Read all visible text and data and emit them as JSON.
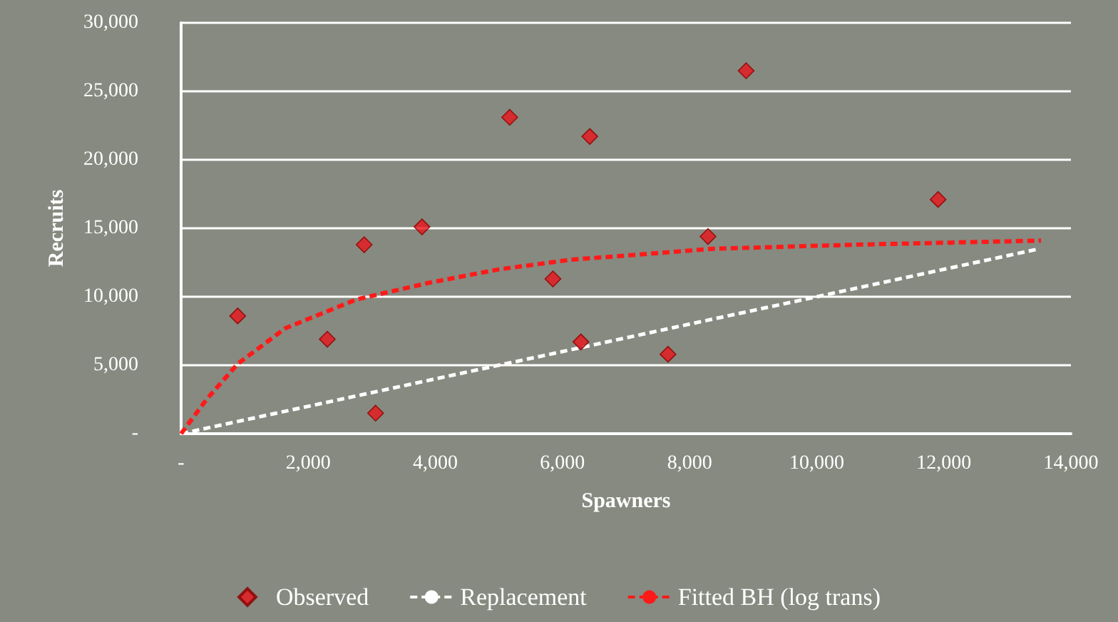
{
  "chart_data": {
    "type": "scatter",
    "xlabel": "Spawners",
    "ylabel": "Recruits",
    "xlim": [
      0,
      14000
    ],
    "xticks": [
      {
        "value": 0,
        "label": "-"
      },
      {
        "value": 2000,
        "label": "2,000"
      },
      {
        "value": 4000,
        "label": "4,000"
      },
      {
        "value": 6000,
        "label": "6,000"
      },
      {
        "value": 8000,
        "label": "8,000"
      },
      {
        "value": 10000,
        "label": "10,000"
      },
      {
        "value": 12000,
        "label": "12,000"
      },
      {
        "value": 14000,
        "label": "14,000"
      }
    ],
    "ylim": [
      0,
      30000
    ],
    "yticks": [
      {
        "value": 0,
        "label": "-"
      },
      {
        "value": 5000,
        "label": "5,000"
      },
      {
        "value": 10000,
        "label": "10,000"
      },
      {
        "value": 15000,
        "label": "15,000"
      },
      {
        "value": 20000,
        "label": "20,000"
      },
      {
        "value": 25000,
        "label": "25,000"
      },
      {
        "value": 30000,
        "label": "30,000"
      }
    ],
    "grid": "y",
    "legend": "bottom",
    "series": [
      {
        "name": "Observed",
        "color": "#e8141a",
        "marker": "diamond",
        "x": [
          890,
          2300,
          2880,
          3060,
          3790,
          5170,
          5850,
          6290,
          6430,
          7660,
          8290,
          8890,
          11910
        ],
        "values": [
          8600,
          6900,
          13800,
          1500,
          15100,
          23100,
          11300,
          6700,
          21700,
          5800,
          14400,
          26500,
          17100
        ]
      },
      {
        "name": "Replacement",
        "type": "line",
        "color": "#ffffff",
        "line_style": "dashed",
        "marker": "none",
        "x": [
          0,
          13500
        ],
        "values": [
          0,
          13500
        ]
      },
      {
        "name": "Fitted BH (log trans)",
        "type": "line",
        "color": "#ff1a1a",
        "line_style": "dashed",
        "marker": "none",
        "x": [
          0,
          400,
          890,
          1640,
          2760,
          3880,
          5000,
          6130,
          8370,
          10610,
          13530
        ],
        "values": [
          0,
          2500,
          5100,
          7700,
          9800,
          11000,
          12000,
          12700,
          13500,
          13800,
          14100
        ]
      }
    ]
  }
}
